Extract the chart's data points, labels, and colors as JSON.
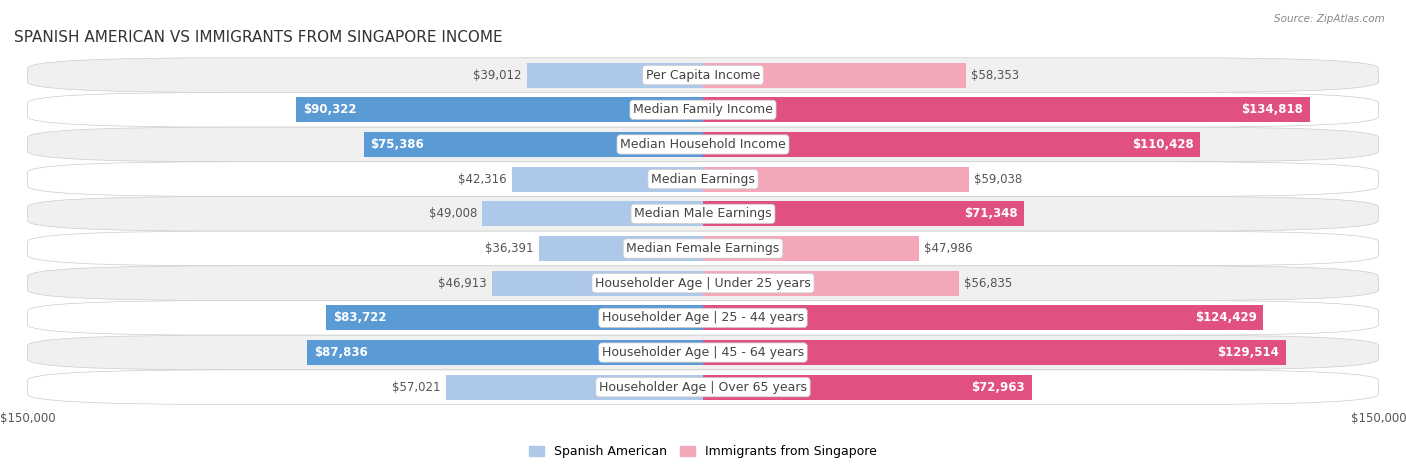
{
  "title": "Spanish American vs Immigrants from Singapore Income",
  "source": "Source: ZipAtlas.com",
  "categories": [
    "Per Capita Income",
    "Median Family Income",
    "Median Household Income",
    "Median Earnings",
    "Median Male Earnings",
    "Median Female Earnings",
    "Householder Age | Under 25 years",
    "Householder Age | 25 - 44 years",
    "Householder Age | 45 - 64 years",
    "Householder Age | Over 65 years"
  ],
  "spanish_american": [
    39012,
    90322,
    75386,
    42316,
    49008,
    36391,
    46913,
    83722,
    87836,
    57021
  ],
  "singapore": [
    58353,
    134818,
    110428,
    59038,
    71348,
    47986,
    56835,
    124429,
    129514,
    72963
  ],
  "spanish_color_light": "#adc8e8",
  "spanish_color_dark": "#5b9bd5",
  "singapore_color_light": "#f4a7b9",
  "singapore_color_dark": "#e05080",
  "max_value": 150000,
  "bar_height": 0.72,
  "bg_color": "#ffffff",
  "row_bg_light": "#f0f0f0",
  "row_bg_white": "#ffffff",
  "label_fontsize": 9,
  "title_fontsize": 11,
  "value_fontsize": 8.5,
  "sp_inside_threshold": 60000,
  "sg_inside_threshold": 60000
}
